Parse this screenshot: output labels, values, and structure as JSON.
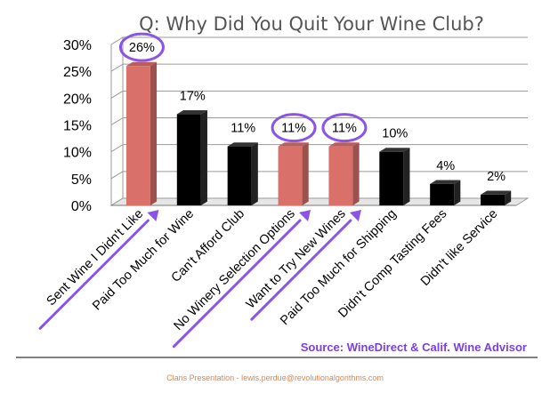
{
  "chart_data": {
    "type": "bar",
    "title": "Q: Why Did You Quit Your Wine Club?",
    "categories": [
      "Sent Wine I Didn't Like",
      "Paid Too Much for Wine",
      "Can't Afford Club",
      "No Winery Selection Options",
      "Want to Try New Wines",
      "Paid Too Much for Shipping",
      "Didn't Comp Tasting Fees",
      "Didn't like Service"
    ],
    "values": [
      26,
      17,
      11,
      11,
      11,
      10,
      4,
      2
    ],
    "value_labels": [
      "26%",
      "17%",
      "11%",
      "11%",
      "11%",
      "10%",
      "4%",
      "2%"
    ],
    "y_ticks": [
      "0%",
      "5%",
      "10%",
      "15%",
      "20%",
      "25%",
      "30%"
    ],
    "ylim": [
      0,
      30
    ],
    "grid": true,
    "highlighted_categories": [
      0,
      3,
      4
    ],
    "colors": {
      "bar_default": "#000000",
      "bar_highlight": "#d9706a",
      "annotation": "#8a55e6"
    }
  },
  "source": "Source: WineDirect & Calif. Wine Advisor",
  "footer": "Clans Presentation - lewis.perdue@revolutionalgorithms.com"
}
